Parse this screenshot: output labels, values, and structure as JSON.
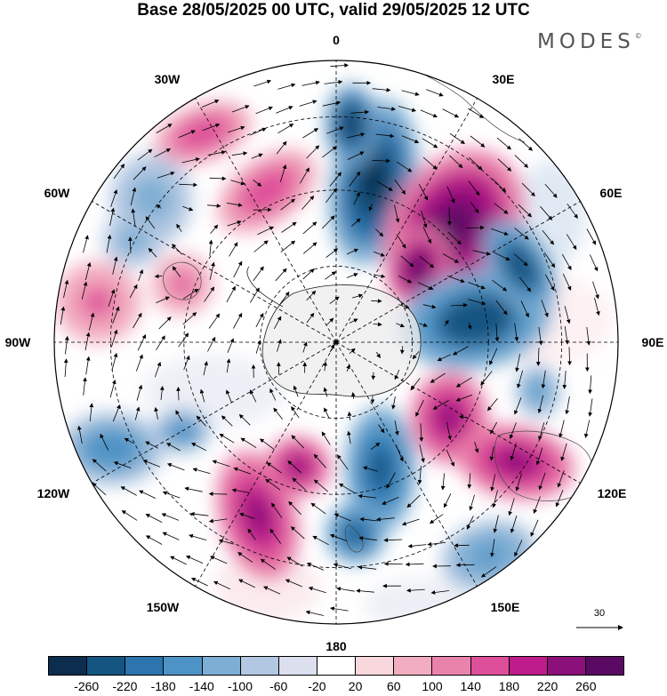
{
  "title": "Base 28/05/2025 00 UTC, valid 29/05/2025 12 UTC",
  "brand": {
    "name": "MODES",
    "mark": "©"
  },
  "map": {
    "projection": "south-polar-stereographic",
    "meridian_labels": {
      "m0": "0",
      "m30e": "30E",
      "m60e": "60E",
      "m90e": "90E",
      "m120e": "120E",
      "m150e": "150E",
      "m180": "180",
      "m150w": "150W",
      "m120w": "120W",
      "m90w": "90W",
      "m60w": "60W",
      "m30w": "30W"
    },
    "anomalies": [
      {
        "name": "pos-30w",
        "value": 150
      },
      {
        "name": "neg-0",
        "value": -250
      },
      {
        "name": "pos-40e",
        "value": 270
      },
      {
        "name": "neg-70e",
        "value": -240
      },
      {
        "name": "neg-60w",
        "value": -120
      },
      {
        "name": "pos-80w",
        "value": 120
      },
      {
        "name": "pos-100e",
        "value": 230
      },
      {
        "name": "neg-150e",
        "value": -230
      },
      {
        "name": "pos-160w",
        "value": 200
      },
      {
        "name": "neg-120w",
        "value": -160
      },
      {
        "name": "neg-140e",
        "value": -140
      }
    ]
  },
  "reference_vector": {
    "label": "30"
  },
  "colorbar": {
    "colors": [
      "#0c2d4e",
      "#155582",
      "#2c75ad",
      "#4e93c5",
      "#7eaed3",
      "#b2c7e2",
      "#dcdfee",
      "#ffffff",
      "#f8d8dd",
      "#f2aec0",
      "#ea83ab",
      "#de4f9a",
      "#bd1c8a",
      "#8b1079",
      "#5a0a63"
    ],
    "ticks": [
      "-260",
      "-220",
      "-180",
      "-140",
      "-100",
      "-60",
      "-20",
      "20",
      "60",
      "100",
      "140",
      "180",
      "220",
      "260"
    ]
  }
}
